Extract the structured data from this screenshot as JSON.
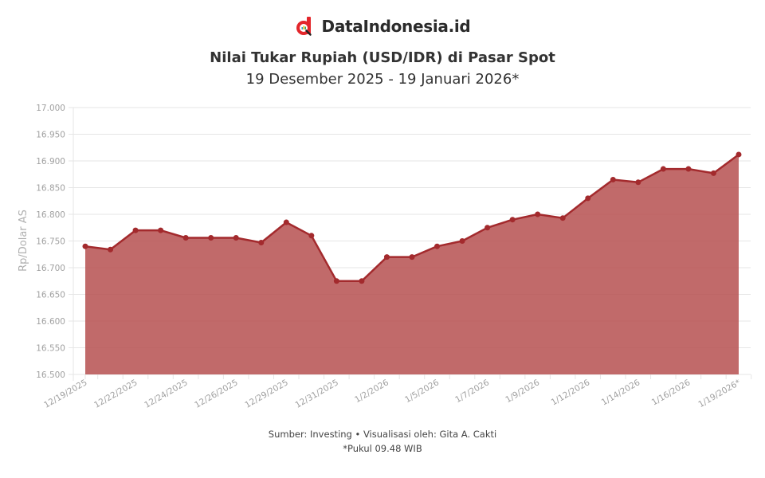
{
  "brand": {
    "name": "DataIndonesia.id",
    "logo_icon": "datainDonesia-logo-icon",
    "accent": "#e3262b"
  },
  "header": {
    "title": "Nilai Tukar Rupiah (USD/IDR) di Pasar Spot",
    "subtitle": "19 Desember 2025 - 19 Januari 2026*"
  },
  "footer": {
    "source": "Sumber: Investing • Visualisasi oleh: Gita A. Cakti",
    "note": "*Pukul 09.48 WIB"
  },
  "colors": {
    "line": "#a32a2d",
    "fill": "#b85555",
    "grid": "#e6e6e6"
  },
  "chart_data": {
    "type": "area",
    "title": "Nilai Tukar Rupiah (USD/IDR) di Pasar Spot",
    "subtitle": "19 Desember 2025 - 19 Januari 2026*",
    "xlabel": "",
    "ylabel": "Rp/Dolar AS",
    "ylim": [
      16500,
      17000
    ],
    "yticks": [
      "16.500",
      "16.550",
      "16.600",
      "16.650",
      "16.700",
      "16.750",
      "16.800",
      "16.850",
      "16.900",
      "16.950",
      "17.000"
    ],
    "x_tick_labels": [
      "12/19/2025",
      "12/22/2025",
      "12/24/2025",
      "12/26/2025",
      "12/29/2025",
      "12/31/2025",
      "1/2/2026",
      "1/5/2026",
      "1/7/2026",
      "1/9/2026",
      "1/12/2026",
      "1/14/2026",
      "1/16/2026",
      "1/19/2026*"
    ],
    "grid": true,
    "legend": "none",
    "series": [
      {
        "name": "USD/IDR",
        "values": [
          16740,
          16734,
          16770,
          16770,
          16756,
          16756,
          16756,
          16747,
          16785,
          16760,
          16675,
          16675,
          16720,
          16720,
          16740,
          16750,
          16775,
          16790,
          16800,
          16793,
          16830,
          16865,
          16860,
          16885,
          16885,
          16877,
          16912
        ]
      }
    ]
  }
}
